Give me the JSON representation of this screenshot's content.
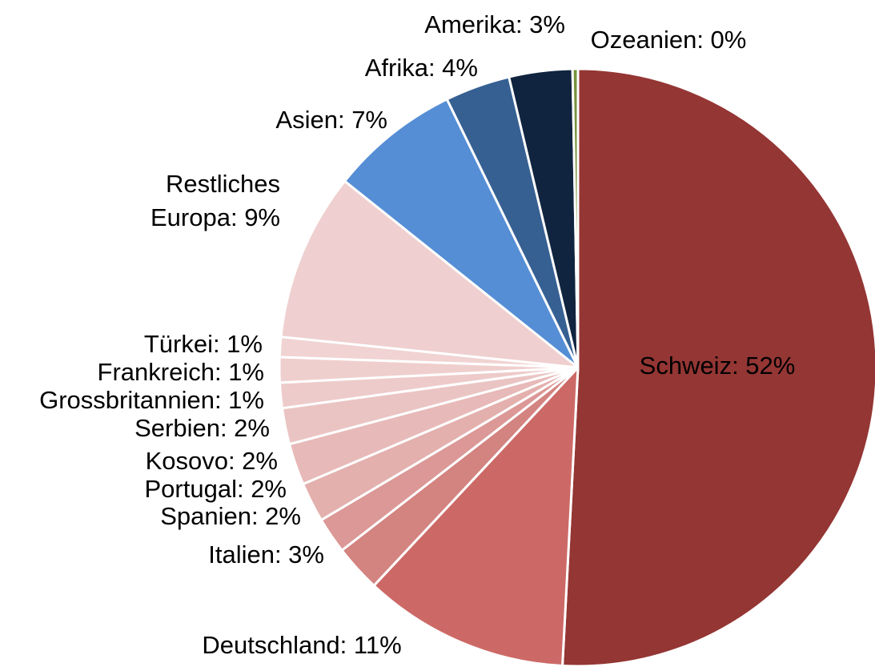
{
  "chart_data": {
    "type": "pie",
    "title": "",
    "categories": [
      "Schweiz",
      "Deutschland",
      "Italien",
      "Spanien",
      "Portugal",
      "Kosovo",
      "Serbien",
      "Grossbritannien",
      "Frankreich",
      "Türkei",
      "Restliches Europa",
      "Asien",
      "Afrika",
      "Amerika",
      "Ozeanien"
    ],
    "values": [
      52.0,
      11.4,
      2.6,
      2.0,
      2.2,
      2.3,
      2.0,
      1.4,
      1.4,
      1.1,
      9.3,
      7.2,
      3.6,
      3.5,
      0.3
    ],
    "labels": [
      "Schweiz: 52%",
      "Deutschland: 11%",
      "Italien: 3%",
      "Spanien: 2%",
      "Portugal: 2%",
      "Kosovo: 2%",
      "Serbien: 2%",
      "Grossbritannien: 1%",
      "Frankreich: 1%",
      "Türkei: 1%",
      "Restliches Europa: 9%",
      "Asien: 7%",
      "Afrika: 4%",
      "Amerika: 3%",
      "Ozeanien: 0%"
    ],
    "colors": [
      "#943634",
      "#CC6966",
      "#D38380",
      "#DB9896",
      "#E3B0AE",
      "#E7B9B8",
      "#EAC4C3",
      "#EDCBCA",
      "#EFCFCE",
      "#F0D3D2",
      "#EFCFCF",
      "#558ED5",
      "#366092",
      "#10243F",
      "#77933C"
    ],
    "start_angle_deg": 0,
    "direction": "clockwise",
    "slice_border_color": "#FFFFFF",
    "legend": "none"
  }
}
